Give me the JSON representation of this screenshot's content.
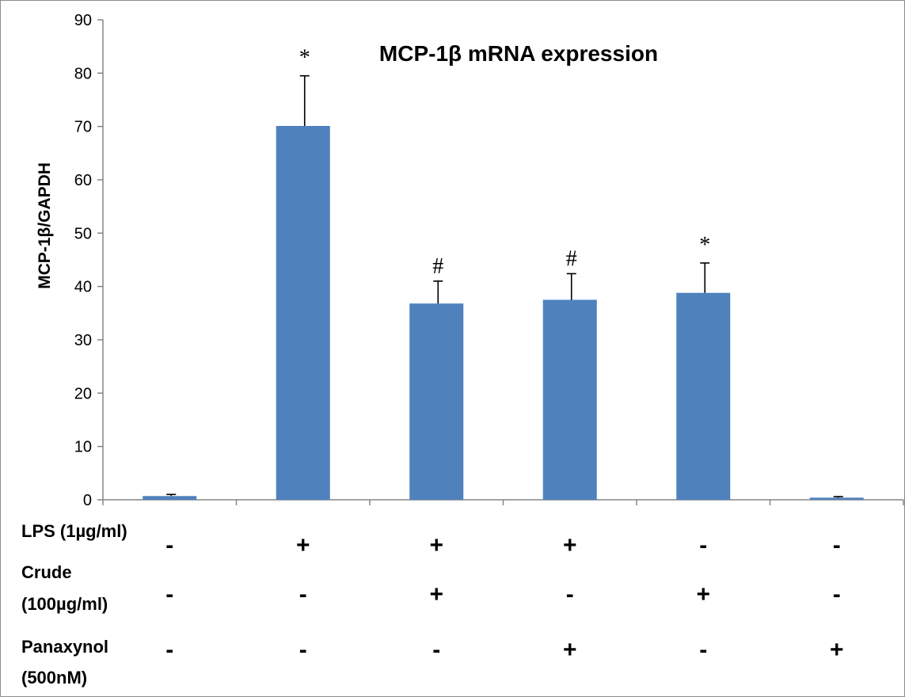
{
  "chart_data": {
    "type": "bar",
    "title": "MCP-1β mRNA expression",
    "ylabel": "MCP-1β/GAPDH",
    "xlabel": "",
    "ylim": [
      0,
      90
    ],
    "yticks": [
      0,
      10,
      20,
      30,
      40,
      50,
      60,
      70,
      80,
      90
    ],
    "grid": false,
    "values": [
      0.7,
      70.1,
      36.8,
      37.5,
      38.8,
      0.4
    ],
    "errors": [
      0.3,
      9.4,
      4.2,
      4.9,
      5.6,
      0.2
    ],
    "annotations": [
      "",
      "*",
      "#",
      "#",
      "*",
      ""
    ],
    "bar_color": "#4f81bd",
    "conditions": [
      {
        "label_lines": [
          "LPS (1µg/ml)"
        ],
        "signs": [
          "-",
          "+",
          "+",
          "+",
          "-",
          "-"
        ]
      },
      {
        "label_lines": [
          "Crude",
          "(100µg/ml)"
        ],
        "signs": [
          "-",
          "-",
          "+",
          "-",
          "+",
          "-"
        ]
      },
      {
        "label_lines": [
          "Panaxynol",
          "(500nM)"
        ],
        "signs": [
          "-",
          "-",
          "-",
          "+",
          "-",
          "+"
        ]
      }
    ]
  }
}
